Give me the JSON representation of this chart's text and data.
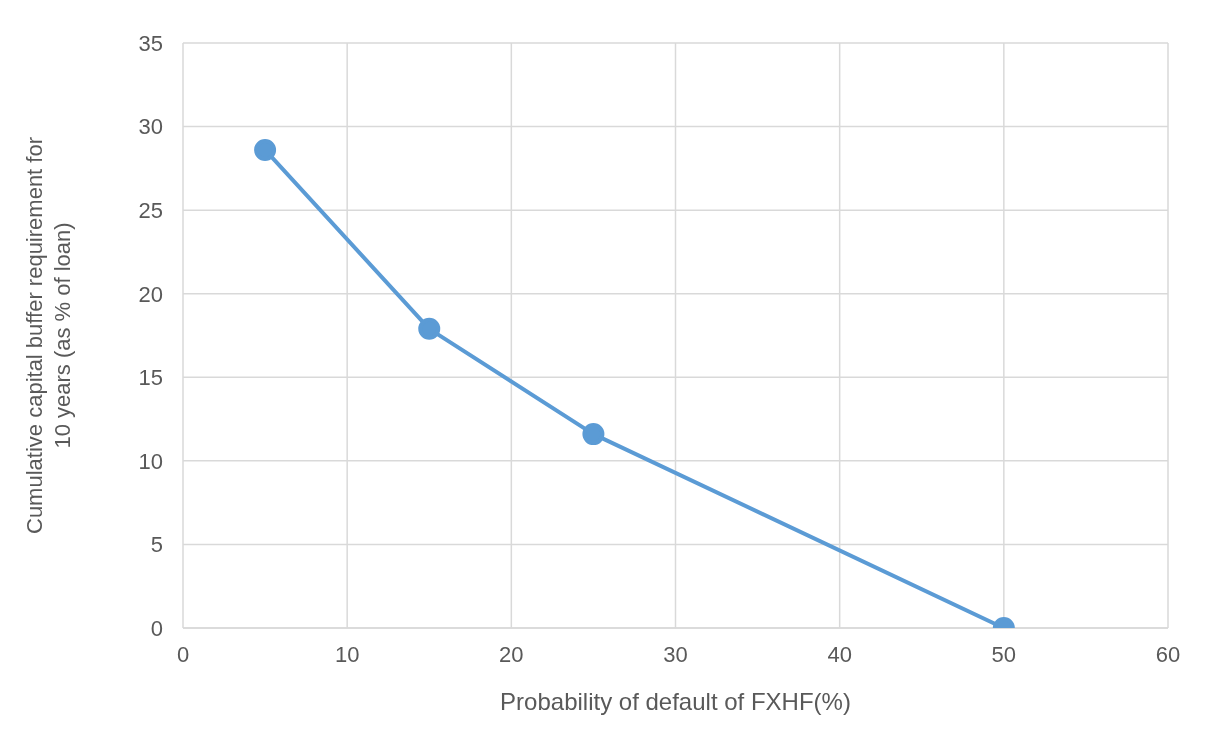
{
  "chart_data": {
    "type": "line",
    "xlabel": "Probability of default of FXHF(%)",
    "ylabel": "Cumulative capital buffer requirement for 10 years (as % of loan)",
    "x": [
      5,
      15,
      25,
      50
    ],
    "series": [
      {
        "color": "#5b9bd5",
        "values": [
          28.6,
          17.9,
          11.6,
          0
        ]
      }
    ],
    "xlim": [
      0,
      60
    ],
    "xticks": [
      0,
      10,
      20,
      30,
      40,
      50,
      60
    ],
    "ylim": [
      0,
      35
    ],
    "yticks": [
      0,
      5,
      10,
      15,
      20,
      25,
      30,
      35
    ],
    "grid": true,
    "marker": "circle",
    "line_style": "solid"
  }
}
